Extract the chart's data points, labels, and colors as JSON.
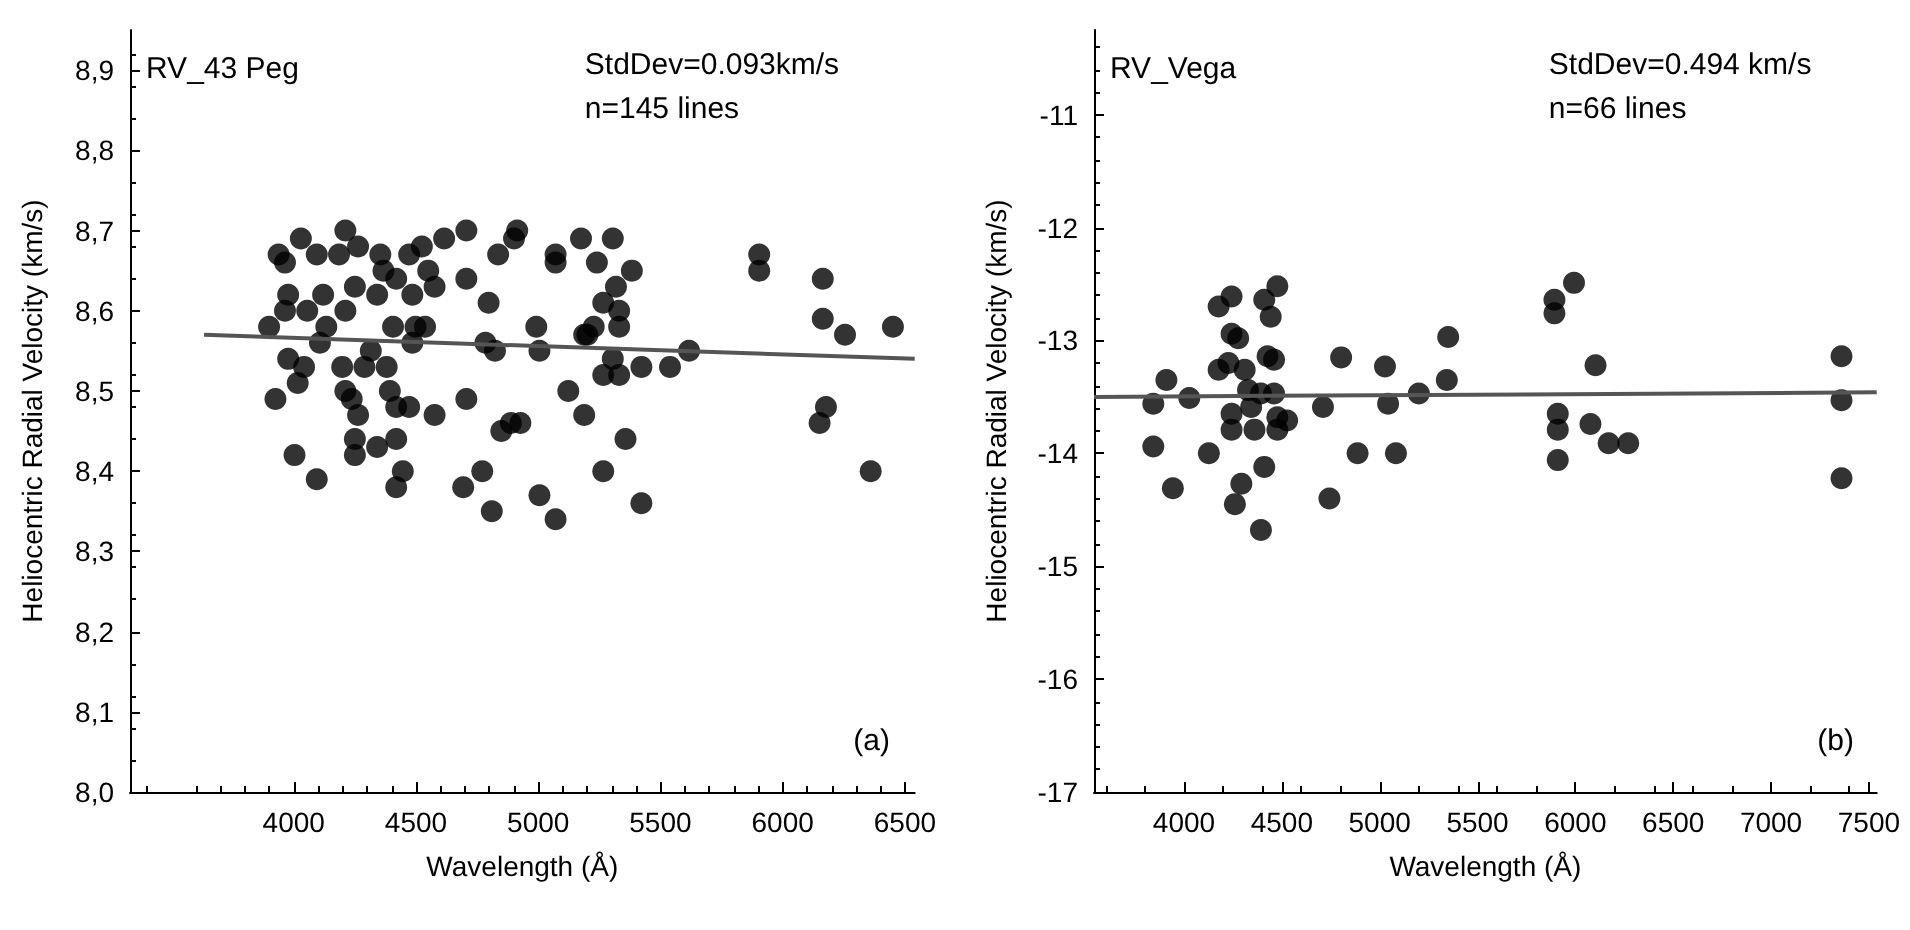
{
  "chart_data": [
    {
      "type": "scatter",
      "xlabel": "Wavelength (Å)",
      "ylabel": "Heliocentric Radial Velocity (km/s)",
      "annotations": [
        "RV_43 Peg",
        "StdDev=0.093km/s",
        "n=145 lines",
        "(a)"
      ],
      "xlim": [
        3330,
        6540
      ],
      "xticks": [
        4000,
        4500,
        5000,
        5500,
        6000,
        6500
      ],
      "ylim": [
        8.0,
        8.95
      ],
      "yticks": [
        {
          "value": 8.0,
          "label": "8,0"
        },
        {
          "value": 8.1,
          "label": "8,1"
        },
        {
          "value": 8.2,
          "label": "8,2"
        },
        {
          "value": 8.3,
          "label": "8,3"
        },
        {
          "value": 8.4,
          "label": "8,4"
        },
        {
          "value": 8.5,
          "label": "8,5"
        },
        {
          "value": 8.6,
          "label": "8,6"
        },
        {
          "value": 8.7,
          "label": "8,7"
        },
        {
          "value": 8.8,
          "label": "8,8"
        },
        {
          "value": 8.9,
          "label": "8,9"
        }
      ],
      "grid": false,
      "marker": "circle",
      "series": [
        {
          "color": "#000000",
          "x": [
            3938,
            3964,
            4029,
            4094,
            3977,
            3964,
            4055,
            3899,
            4120,
            4211,
            4263,
            4185,
            4250,
            4211,
            4133,
            4107,
            3977,
            4042,
            4016,
            3925,
            4003,
            4094,
            4198,
            4211,
            4237,
            4263,
            4289,
            4315,
            4250,
            4250,
            4354,
            4367,
            4341,
            4419,
            4406,
            4380,
            4393,
            4419,
            4341,
            4419,
            4446,
            4419,
            4472,
            4524,
            4550,
            4576,
            4485,
            4498,
            4537,
            4485,
            4472,
            4576,
            4615,
            4706,
            4706,
            4797,
            4784,
            4823,
            4836,
            4914,
            4901,
            4706,
            4849,
            4888,
            4927,
            4693,
            4771,
            4810,
            4992,
            5005,
            5005,
            5071,
            5071,
            5071,
            5175,
            5240,
            5305,
            5383,
            5318,
            5266,
            5331,
            5331,
            5227,
            5201,
            5188,
            5123,
            5188,
            5305,
            5266,
            5331,
            5422,
            5539,
            5617,
            5357,
            5266,
            5422,
            5904,
            5904,
            6164,
            6164,
            6255,
            6451,
            6177,
            6151,
            6360
          ],
          "values": [
            8.67,
            8.66,
            8.69,
            8.67,
            8.62,
            8.6,
            8.6,
            8.58,
            8.62,
            8.7,
            8.68,
            8.67,
            8.63,
            8.6,
            8.58,
            8.56,
            8.54,
            8.53,
            8.51,
            8.49,
            8.42,
            8.39,
            8.53,
            8.5,
            8.49,
            8.47,
            8.53,
            8.55,
            8.44,
            8.42,
            8.67,
            8.65,
            8.62,
            8.64,
            8.58,
            8.53,
            8.5,
            8.48,
            8.43,
            8.44,
            8.4,
            8.38,
            8.67,
            8.68,
            8.65,
            8.63,
            8.62,
            8.58,
            8.58,
            8.56,
            8.48,
            8.47,
            8.69,
            8.7,
            8.64,
            8.61,
            8.56,
            8.55,
            8.67,
            8.7,
            8.69,
            8.49,
            8.45,
            8.46,
            8.46,
            8.38,
            8.4,
            8.35,
            8.58,
            8.55,
            8.37,
            8.34,
            8.67,
            8.66,
            8.69,
            8.66,
            8.69,
            8.65,
            8.63,
            8.61,
            8.6,
            8.58,
            8.58,
            8.57,
            8.57,
            8.5,
            8.47,
            8.54,
            8.52,
            8.52,
            8.53,
            8.53,
            8.55,
            8.44,
            8.4,
            8.36,
            8.67,
            8.65,
            8.64,
            8.59,
            8.57,
            8.58,
            8.48,
            8.46,
            8.4
          ]
        },
        {
          "type": "line",
          "color": "#555555",
          "marker": "none",
          "x": [
            3633,
            6540
          ],
          "values": [
            8.57,
            8.54
          ]
        }
      ]
    },
    {
      "type": "scatter",
      "xlabel": "Wavelength (Å)",
      "ylabel": "Heliocentric Radial Velocity (km/s)",
      "annotations": [
        "RV_Vega",
        "StdDev=0.494 km/s",
        "n=66 lines",
        "(b)"
      ],
      "xlim": [
        3540,
        7540
      ],
      "xticks": [
        4000,
        4500,
        5000,
        5500,
        6000,
        6500,
        7000,
        7500
      ],
      "ylim": [
        -17,
        -10.25
      ],
      "yticks": [
        -17,
        -16,
        -15,
        -14,
        -13,
        -12,
        -11
      ],
      "grid": false,
      "marker": "circle",
      "series": [
        {
          "color": "#000000",
          "x": [
            3843,
            3843,
            3910,
            3943,
            4027,
            4127,
            4177,
            4243,
            4243,
            4277,
            4177,
            4227,
            4310,
            4243,
            4243,
            4293,
            4260,
            4327,
            4343,
            4360,
            4393,
            4410,
            4393,
            4410,
            4443,
            4477,
            4427,
            4460,
            4460,
            4477,
            4527,
            4477,
            4710,
            4803,
            4743,
            4887,
            5027,
            5043,
            5083,
            5200,
            5350,
            5343,
            5893,
            5893,
            5993,
            5910,
            5910,
            5910,
            6077,
            6103,
            6170,
            6270,
            7360,
            7360,
            7360
          ],
          "values": [
            -13.56,
            -13.94,
            -13.35,
            -14.31,
            -13.51,
            -14.0,
            -12.7,
            -12.61,
            -12.94,
            -12.98,
            -13.26,
            -13.2,
            -13.26,
            -13.65,
            -13.79,
            -14.27,
            -14.45,
            -13.44,
            -13.59,
            -13.79,
            -13.47,
            -14.12,
            -14.68,
            -12.64,
            -12.79,
            -12.52,
            -13.14,
            -13.17,
            -13.47,
            -13.68,
            -13.71,
            -13.79,
            -13.59,
            -13.15,
            -14.4,
            -14.0,
            -13.23,
            -13.56,
            -14.0,
            -13.47,
            -12.97,
            -13.35,
            -12.64,
            -12.76,
            -12.49,
            -13.65,
            -13.79,
            -14.06,
            -13.74,
            -13.22,
            -13.91,
            -13.91,
            -13.14,
            -13.53,
            -14.22
          ]
        },
        {
          "type": "line",
          "color": "#555555",
          "marker": "none",
          "x": [
            3540,
            7540
          ],
          "values": [
            -13.5,
            -13.46
          ]
        }
      ]
    }
  ]
}
